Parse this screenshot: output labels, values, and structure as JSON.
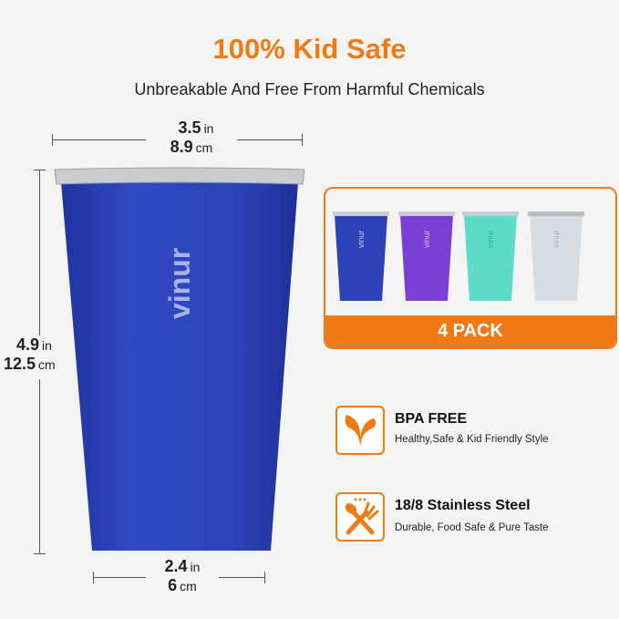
{
  "header": {
    "title": "100% Kid Safe",
    "subtitle": "Unbreakable And Free From Harmful Chemicals"
  },
  "dimensions": {
    "top_width": {
      "in_value": "3.5",
      "in_unit": "in",
      "cm_value": "8.9",
      "cm_unit": "cm"
    },
    "height": {
      "in_value": "4.9",
      "in_unit": "in",
      "cm_value": "12.5",
      "cm_unit": "cm"
    },
    "bottom_width": {
      "in_value": "2.4",
      "in_unit": "in",
      "cm_value": "6",
      "cm_unit": "cm"
    }
  },
  "product": {
    "brand": "vinur",
    "main_color": "#2c43b8"
  },
  "pack": {
    "label": "4 PACK",
    "colors": [
      "#2c43b8",
      "#7b3fd6",
      "#5fdcc8",
      "#d5dde3"
    ]
  },
  "features": [
    {
      "icon": "leaf-icon",
      "title": "BPA FREE",
      "subtitle": "Healthy,Safe & Kid Friendly Style"
    },
    {
      "icon": "spoon-fork-icon",
      "title": "18/8 Stainless Steel",
      "subtitle": "Durable, Food Safe & Pure Taste"
    }
  ],
  "accent": "#f07b16"
}
